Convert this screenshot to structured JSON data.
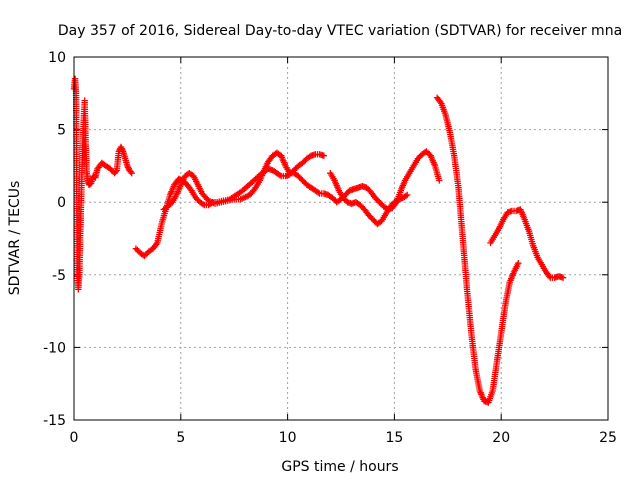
{
  "chart_data": {
    "type": "scatter",
    "title": "Day 357 of 2016, Sidereal Day-to-day VTEC variation (SDTVAR) for receiver mna",
    "xlabel": "GPS time / hours",
    "ylabel": "SDTVAR / TECUs",
    "xlim": [
      0,
      25
    ],
    "ylim": [
      -15,
      10
    ],
    "xticks": [
      "0",
      "5",
      "10",
      "15",
      "20",
      "25"
    ],
    "yticks": [
      "-15",
      "-10",
      "-5",
      "0",
      "5",
      "10"
    ],
    "grid": true,
    "marker": "plus",
    "colors": {
      "series": "#ff0000",
      "grid": "#a0a0a0",
      "axes": "#000000"
    },
    "series": [
      {
        "x": [
          0.0,
          0.05,
          0.1,
          0.15,
          0.2,
          0.25,
          0.3,
          0.35,
          0.4,
          0.45,
          0.5,
          0.55,
          0.6,
          0.65,
          0.7,
          0.8,
          0.9,
          1.0,
          1.1,
          1.3,
          1.5,
          1.7,
          1.9,
          2.0,
          2.1,
          2.2,
          2.3,
          2.4,
          2.5,
          2.6,
          2.7
        ],
        "y": [
          7.8,
          8.5,
          7.5,
          -4.5,
          -6.0,
          -5.0,
          -2.0,
          1.0,
          3.5,
          5.5,
          7.0,
          4.0,
          2.0,
          1.5,
          1.2,
          1.3,
          1.8,
          1.7,
          2.3,
          2.7,
          2.5,
          2.3,
          2.0,
          2.2,
          3.5,
          3.8,
          3.5,
          3.0,
          2.5,
          2.2,
          2.0
        ]
      },
      {
        "x": [
          2.9,
          3.1,
          3.3,
          3.5,
          3.7,
          3.9,
          4.1,
          4.3,
          4.5,
          4.7,
          4.9,
          5.1,
          5.3,
          5.5,
          5.7,
          5.9,
          6.1,
          6.3,
          6.5,
          6.7,
          7.0,
          7.3,
          7.6,
          7.9,
          8.2,
          8.5,
          8.8,
          9.1,
          9.3,
          9.5,
          9.7,
          9.9,
          10.1,
          10.3,
          10.5,
          10.7,
          10.9,
          11.1,
          11.3,
          11.5,
          11.7
        ],
        "y": [
          -3.2,
          -3.5,
          -3.7,
          -3.4,
          -3.2,
          -2.8,
          -1.5,
          -0.5,
          0.5,
          1.2,
          1.6,
          1.5,
          1.2,
          0.8,
          0.3,
          0.0,
          -0.2,
          -0.2,
          0.0,
          0.0,
          0.1,
          0.2,
          0.5,
          0.8,
          1.2,
          1.6,
          2.0,
          2.3,
          2.2,
          2.0,
          1.8,
          1.8,
          1.9,
          2.2,
          2.5,
          2.7,
          3.0,
          3.2,
          3.3,
          3.3,
          3.2
        ]
      },
      {
        "x": [
          4.2,
          4.4,
          4.6,
          4.8,
          5.0,
          5.2,
          5.4,
          5.6,
          5.8,
          6.0,
          6.3,
          6.6,
          6.9,
          7.2,
          7.5,
          7.8,
          8.1,
          8.3,
          8.5,
          8.7,
          8.9,
          9.1,
          9.3,
          9.5,
          9.7,
          9.9,
          10.1,
          10.3,
          10.5,
          10.7,
          10.9,
          11.1,
          11.3,
          11.5,
          11.7,
          11.9,
          12.1,
          12.3,
          12.5,
          12.7,
          12.9,
          13.1,
          13.3,
          13.5,
          13.7,
          13.9,
          14.1,
          14.3,
          14.5,
          14.7,
          14.9,
          15.1,
          15.3,
          15.5,
          15.7,
          15.9,
          16.1,
          16.3,
          16.5,
          16.7,
          16.9,
          17.1
        ],
        "y": [
          -0.5,
          -0.3,
          0.0,
          0.5,
          1.2,
          1.8,
          2.0,
          1.8,
          1.2,
          0.6,
          0.1,
          -0.1,
          0.0,
          0.1,
          0.2,
          0.2,
          0.4,
          0.6,
          1.0,
          1.5,
          2.2,
          2.8,
          3.2,
          3.4,
          3.2,
          2.5,
          2.0,
          2.0,
          1.8,
          1.5,
          1.2,
          1.0,
          0.8,
          0.6,
          0.6,
          0.5,
          0.3,
          0.0,
          0.2,
          0.5,
          0.8,
          0.9,
          1.0,
          1.1,
          1.0,
          0.7,
          0.3,
          0.0,
          -0.3,
          -0.5,
          -0.4,
          0.0,
          0.8,
          1.5,
          2.0,
          2.5,
          3.0,
          3.3,
          3.5,
          3.2,
          2.5,
          1.5
        ]
      },
      {
        "x": [
          12.0,
          12.2,
          12.4,
          12.6,
          12.8,
          13.0,
          13.2,
          13.4,
          13.6,
          13.8,
          14.0,
          14.2,
          14.4,
          14.6,
          14.8,
          15.0,
          15.2,
          15.4,
          15.6
        ],
        "y": [
          2.0,
          1.5,
          0.8,
          0.3,
          0.0,
          -0.1,
          0.0,
          -0.2,
          -0.5,
          -0.9,
          -1.2,
          -1.5,
          -1.3,
          -0.8,
          -0.3,
          0.0,
          0.2,
          0.3,
          0.5
        ]
      },
      {
        "x": [
          17.0,
          17.2,
          17.4,
          17.6,
          17.8,
          18.0,
          18.2,
          18.4,
          18.6,
          18.8,
          19.0,
          19.2,
          19.4,
          19.6,
          19.8,
          20.0,
          20.2,
          20.4,
          20.6,
          20.8
        ],
        "y": [
          7.2,
          6.8,
          6.0,
          4.8,
          3.2,
          1.0,
          -2.5,
          -6.0,
          -9.0,
          -11.5,
          -13.0,
          -13.7,
          -13.8,
          -13.0,
          -11.0,
          -9.0,
          -7.0,
          -5.5,
          -4.8,
          -4.2
        ]
      },
      {
        "x": [
          19.5,
          19.7,
          19.9,
          20.1,
          20.3,
          20.5,
          20.7,
          20.9,
          21.1,
          21.3,
          21.5,
          21.7,
          21.9,
          22.1,
          22.3,
          22.5,
          22.7,
          22.9
        ],
        "y": [
          -2.8,
          -2.3,
          -1.8,
          -1.2,
          -0.7,
          -0.6,
          -0.6,
          -0.5,
          -1.2,
          -2.0,
          -3.0,
          -3.8,
          -4.3,
          -4.8,
          -5.2,
          -5.2,
          -5.1,
          -5.2
        ]
      }
    ]
  }
}
